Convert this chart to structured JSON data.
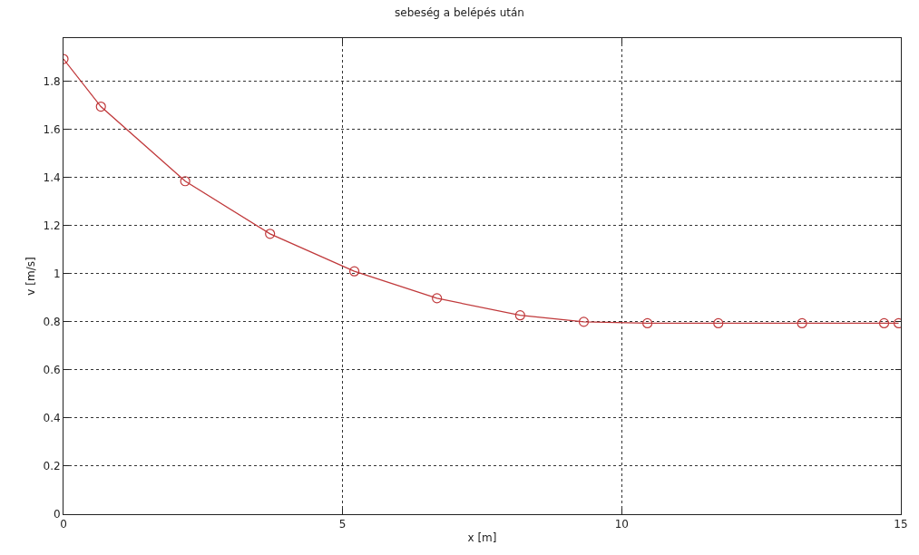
{
  "chart_data": {
    "type": "line",
    "title": "sebeség a belépés után",
    "xlabel": "x [m]",
    "ylabel": "v [m/s]",
    "series": [
      {
        "color": "#c0393b",
        "x": [
          0,
          0.67,
          2.18,
          3.7,
          5.21,
          6.69,
          8.18,
          9.32,
          10.46,
          11.73,
          13.23,
          14.7,
          14.96
        ],
        "values": [
          1.893,
          1.695,
          1.385,
          1.166,
          1.01,
          0.898,
          0.827,
          0.8,
          0.794,
          0.794,
          0.794,
          0.794,
          0.794
        ]
      }
    ],
    "xlim": [
      0,
      15
    ],
    "xticks": [
      0,
      5,
      10,
      15
    ],
    "ylim": [
      0,
      1.98
    ],
    "yticks": [
      0,
      0.2,
      0.4,
      0.6,
      0.8,
      1,
      1.2,
      1.4,
      1.6,
      1.8
    ],
    "grid": true,
    "marker": "circle",
    "line_style": "solid",
    "legend": false
  }
}
